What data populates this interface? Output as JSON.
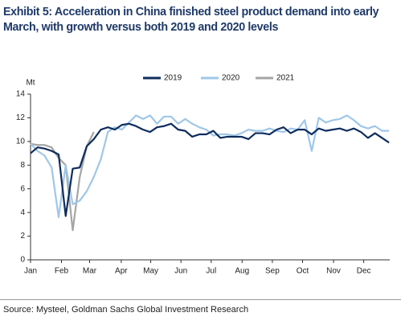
{
  "chart_data": {
    "type": "line",
    "title": "Exhibit 5: Acceleration in China finished steel product demand into early March, with growth versus both 2019 and 2020 levels",
    "y_axis_label": "Mt",
    "source": "Source: Mysteel, Goldman Sachs Global Investment Research",
    "x": [
      0,
      1,
      2,
      3,
      4,
      5,
      6,
      7,
      8,
      9,
      10,
      11,
      12,
      13,
      14,
      15,
      16,
      17,
      18,
      19,
      20,
      21,
      22,
      23,
      24,
      25,
      26,
      27,
      28,
      29,
      30,
      31,
      32,
      33,
      34,
      35,
      36,
      37,
      38,
      39,
      40,
      41,
      42,
      43,
      44,
      45,
      46,
      47,
      48,
      49,
      50,
      51
    ],
    "xlim": [
      0,
      51.1
    ],
    "xticks": [
      {
        "value": 0,
        "label": "Jan"
      },
      {
        "value": 4.4,
        "label": "Feb"
      },
      {
        "value": 8.4,
        "label": "Mar"
      },
      {
        "value": 12.9,
        "label": "Apr"
      },
      {
        "value": 17.1,
        "label": "May"
      },
      {
        "value": 21.4,
        "label": "Jun"
      },
      {
        "value": 25.7,
        "label": "Jul"
      },
      {
        "value": 30.1,
        "label": "Aug"
      },
      {
        "value": 34.4,
        "label": "Sep"
      },
      {
        "value": 38.7,
        "label": "Oct"
      },
      {
        "value": 43.1,
        "label": "Nov"
      },
      {
        "value": 47.4,
        "label": "Dec"
      }
    ],
    "ylim": [
      0,
      14
    ],
    "yticks": [
      0,
      2,
      4,
      6,
      8,
      10,
      12,
      14
    ],
    "grid": false,
    "legend": "top",
    "series": [
      {
        "name": "2019",
        "color": "#0e2d5e",
        "values": [
          9.0,
          9.5,
          9.4,
          9.2,
          8.9,
          3.7,
          7.7,
          7.8,
          9.6,
          10.2,
          11.0,
          11.2,
          11.0,
          11.4,
          11.5,
          11.3,
          11.0,
          10.8,
          11.2,
          11.3,
          11.5,
          11.0,
          10.9,
          10.4,
          10.6,
          10.6,
          10.9,
          10.3,
          10.4,
          10.4,
          10.4,
          10.2,
          10.7,
          10.7,
          10.6,
          11.0,
          11.2,
          10.7,
          11.0,
          11.0,
          10.6,
          11.1,
          10.9,
          11.0,
          11.1,
          10.9,
          11.1,
          10.8,
          10.3,
          10.7,
          10.3,
          9.9
        ]
      },
      {
        "name": "2020",
        "color": "#9fc7e8",
        "values": [
          9.8,
          9.2,
          8.8,
          7.8,
          3.6,
          8.0,
          4.7,
          5.0,
          5.8,
          7.0,
          8.5,
          10.8,
          11.2,
          11.0,
          11.6,
          12.2,
          11.9,
          12.2,
          11.5,
          12.1,
          12.1,
          11.5,
          11.9,
          11.5,
          11.2,
          11.0,
          10.5,
          10.6,
          10.6,
          10.5,
          10.7,
          11.0,
          10.9,
          10.9,
          11.1,
          10.9,
          10.8,
          11.1,
          11.0,
          11.8,
          9.2,
          12.0,
          11.6,
          11.8,
          11.9,
          12.2,
          11.8,
          11.3,
          11.1,
          11.3,
          10.9,
          10.9
        ]
      },
      {
        "name": "2021",
        "color": "#a5a5a5",
        "values": [
          9.8,
          9.7,
          9.7,
          9.5,
          8.6,
          8.0,
          2.5,
          7.0,
          9.6,
          10.8,
          null,
          null,
          null,
          null,
          null,
          null,
          null,
          null,
          null,
          null,
          null,
          null,
          null,
          null,
          null,
          null,
          null,
          null,
          null,
          null,
          null,
          null,
          null,
          null,
          null,
          null,
          null,
          null,
          null,
          null,
          null,
          null,
          null,
          null,
          null,
          null,
          null,
          null,
          null,
          null,
          null,
          null
        ]
      }
    ]
  }
}
